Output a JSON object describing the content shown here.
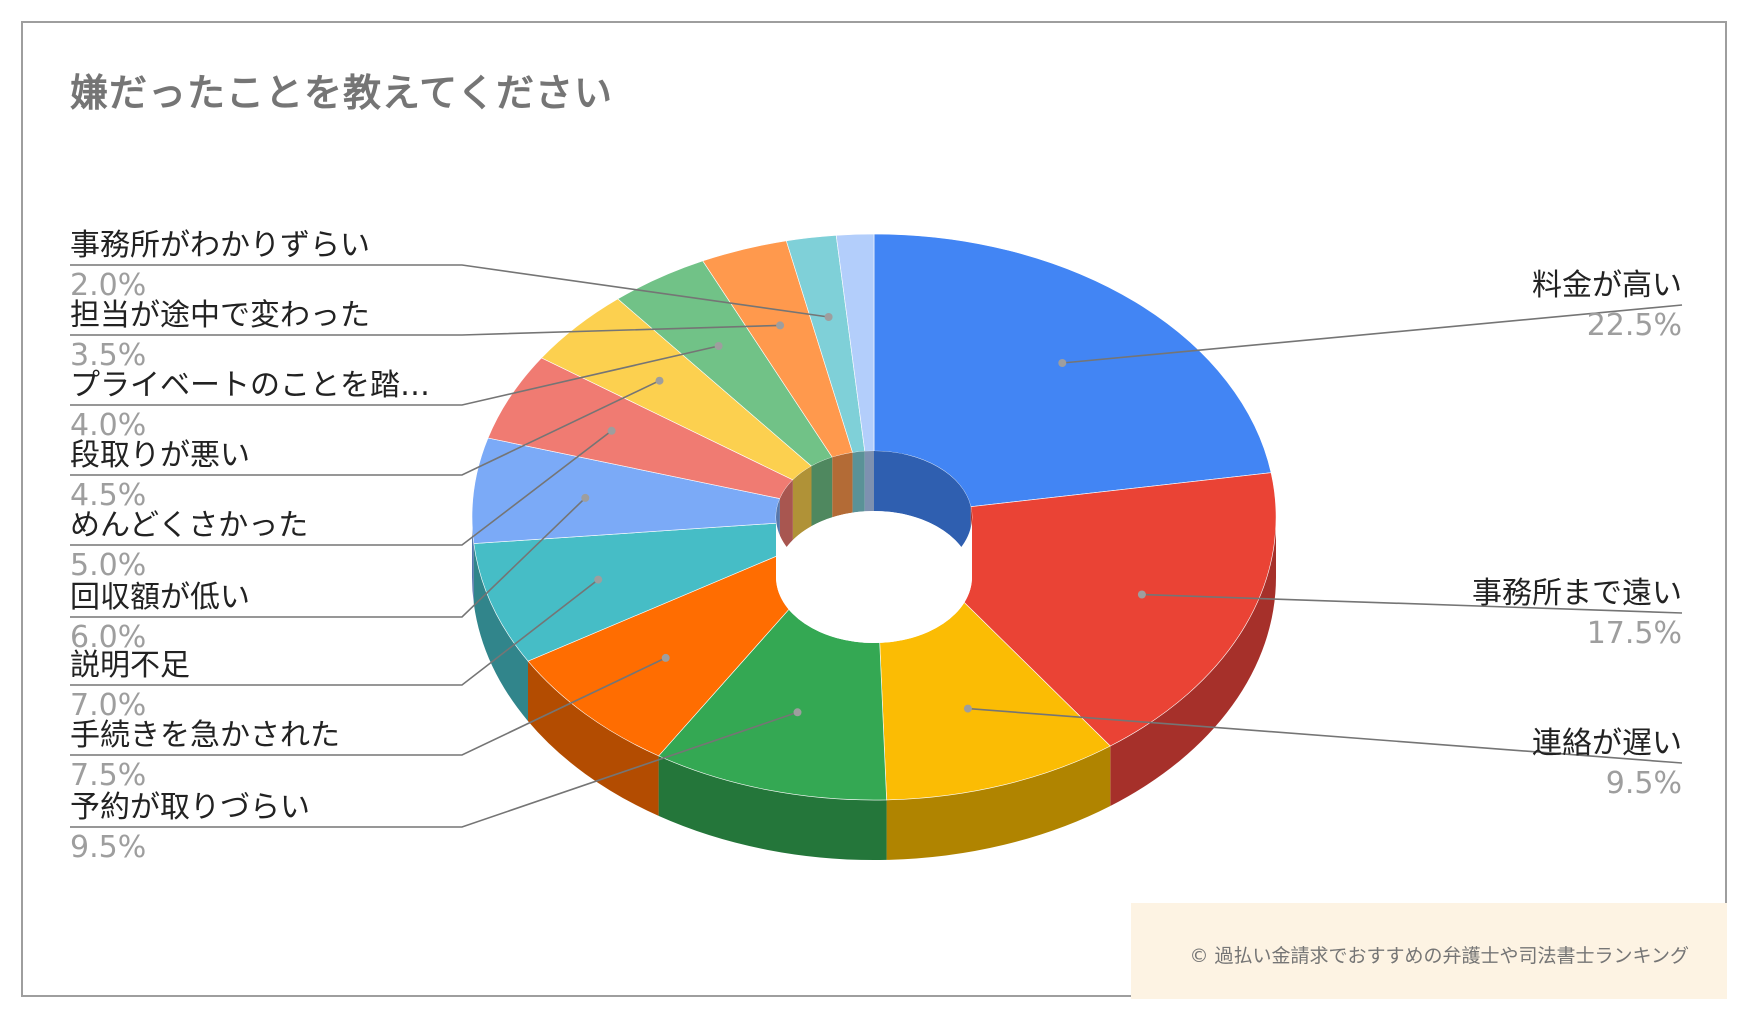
{
  "chart_data": {
    "type": "pie",
    "title": "嫌だったことを教えてください",
    "slices": [
      {
        "label": "料金が高い",
        "value": 22.5,
        "pct_label": "22.5%",
        "color": "#4285f4",
        "side_color": "#2f5fb0"
      },
      {
        "label": "事務所まで遠い",
        "value": 17.5,
        "pct_label": "17.5%",
        "color": "#ea4335",
        "side_color": "#a6302a"
      },
      {
        "label": "連絡が遅い",
        "value": 9.5,
        "pct_label": "9.5%",
        "color": "#fbbc04",
        "side_color": "#b08400"
      },
      {
        "label": "予約が取りづらい",
        "value": 9.5,
        "pct_label": "9.5%",
        "color": "#34a853",
        "side_color": "#24763a"
      },
      {
        "label": "手続きを急かされた",
        "value": 7.5,
        "pct_label": "7.5%",
        "color": "#ff6d01",
        "side_color": "#b34c01"
      },
      {
        "label": "説明不足",
        "value": 7.0,
        "pct_label": "7.0%",
        "color": "#46bdc6",
        "side_color": "#31858b"
      },
      {
        "label": "回収額が低い",
        "value": 6.0,
        "pct_label": "6.0%",
        "color": "#7baaf7",
        "side_color": "#5677ad"
      },
      {
        "label": "めんどくさかった",
        "value": 5.0,
        "pct_label": "5.0%",
        "color": "#f07b72",
        "side_color": "#a85650"
      },
      {
        "label": "段取りが悪い",
        "value": 4.5,
        "pct_label": "4.5%",
        "color": "#fcd04f",
        "side_color": "#b09237"
      },
      {
        "label": "プライベートのことを踏…",
        "value": 4.0,
        "pct_label": "4.0%",
        "color": "#71c287",
        "side_color": "#4f885f"
      },
      {
        "label": "担当が途中で変わった",
        "value": 3.5,
        "pct_label": "3.5%",
        "color": "#ff994d",
        "side_color": "#b36b36"
      },
      {
        "label": "事務所がわかりずらい",
        "value": 2.0,
        "pct_label": "2.0%",
        "color": "#7fd0d8",
        "side_color": "#5a9297"
      },
      {
        "label": "",
        "value": 1.5,
        "pct_label": "",
        "color": "#b3cefb",
        "side_color": "#7e91b0"
      }
    ],
    "legend": "none",
    "donut": true,
    "three_d": true
  },
  "credit": "© 過払い金請求でおすすめの弁護士や司法書士ランキング"
}
